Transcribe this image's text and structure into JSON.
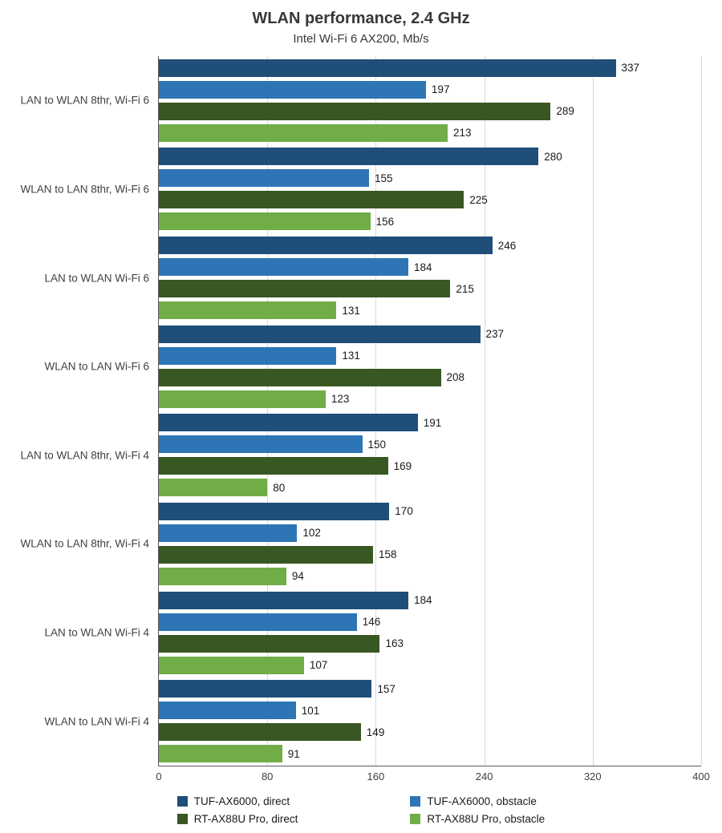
{
  "title": "WLAN performance, 2.4 GHz",
  "subtitle": "Intel Wi-Fi 6 AX200, Mb/s",
  "colors": {
    "axis": "#595959",
    "gridline": "#d9d9d9",
    "series_dark_blue": "#1F4E79",
    "series_light_blue": "#2E75B6",
    "series_dark_green": "#385723",
    "series_light_green": "#70AD47"
  },
  "chart_data": {
    "type": "bar",
    "orientation": "horizontal",
    "title": "WLAN performance, 2.4 GHz",
    "subtitle": "Intel Wi-Fi 6 AX200, Mb/s",
    "xlabel": "",
    "ylabel": "",
    "xlim": [
      0,
      400
    ],
    "xticks": [
      0,
      80,
      160,
      240,
      320,
      400
    ],
    "grid": true,
    "legend_position": "bottom",
    "categories": [
      "LAN to WLAN 8thr, Wi-Fi 6",
      "WLAN to LAN 8thr, Wi-Fi 6",
      "LAN to WLAN Wi-Fi 6",
      "WLAN to LAN Wi-Fi 6",
      "LAN to WLAN 8thr, Wi-Fi 4",
      "WLAN to LAN 8thr, Wi-Fi 4",
      "LAN to WLAN Wi-Fi 4",
      "WLAN to LAN Wi-Fi 4"
    ],
    "series": [
      {
        "name": "TUF-AX6000, direct",
        "color": "#1F4E79",
        "values": [
          337,
          280,
          246,
          237,
          191,
          170,
          184,
          157
        ]
      },
      {
        "name": "TUF-AX6000, obstacle",
        "color": "#2E75B6",
        "values": [
          197,
          155,
          184,
          131,
          150,
          102,
          146,
          101
        ]
      },
      {
        "name": "RT-AX88U Pro, direct",
        "color": "#385723",
        "values": [
          289,
          225,
          215,
          208,
          169,
          158,
          163,
          149
        ]
      },
      {
        "name": "RT-AX88U Pro, obstacle",
        "color": "#70AD47",
        "values": [
          213,
          156,
          131,
          123,
          80,
          94,
          107,
          91
        ]
      }
    ]
  }
}
